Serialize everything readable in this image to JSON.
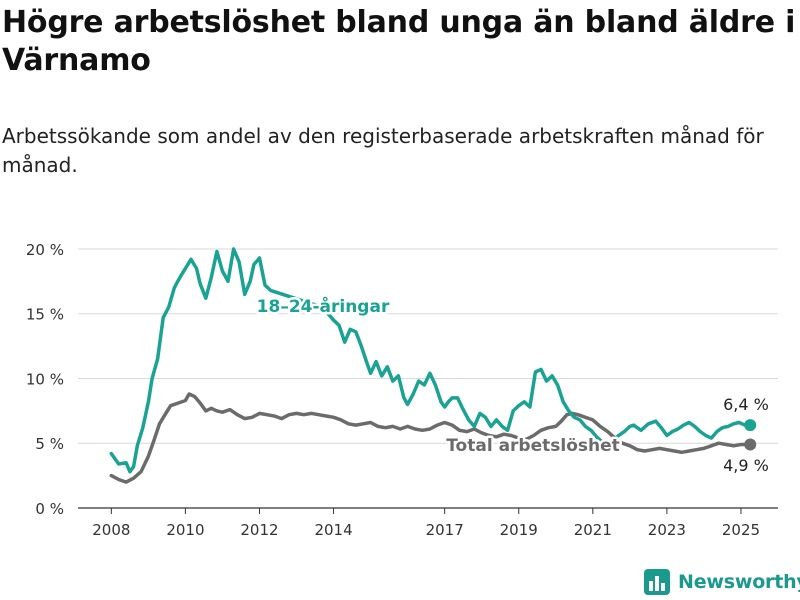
{
  "title": "Högre arbetslöshet bland unga än bland äldre i Värnamo",
  "subtitle": "Arbetssökande som andel av den registerbaserade arbetskraften månad för månad.",
  "brand": {
    "name": "Newsworthy",
    "color": "#1a9a8c"
  },
  "chart_data": {
    "type": "line",
    "x_ticks": [
      {
        "label": "2008",
        "x": 2008.0
      },
      {
        "label": "2010",
        "x": 2010.0
      },
      {
        "label": "2012",
        "x": 2012.0
      },
      {
        "label": "2014",
        "x": 2014.0
      },
      {
        "label": "2017",
        "x": 2017.0
      },
      {
        "label": "2019",
        "x": 2019.0
      },
      {
        "label": "2021",
        "x": 2021.0
      },
      {
        "label": "2023",
        "x": 2023.0
      },
      {
        "label": "2025",
        "x": 2025.0
      }
    ],
    "y_ticks": [
      {
        "label": "0 %",
        "y": 0
      },
      {
        "label": "5 %",
        "y": 5
      },
      {
        "label": "10 %",
        "y": 10
      },
      {
        "label": "15 %",
        "y": 15
      },
      {
        "label": "20 %",
        "y": 20
      }
    ],
    "xlim": [
      2007.1,
      2026.0
    ],
    "ylim": [
      0,
      21
    ],
    "grid": "horizontal",
    "series": [
      {
        "name": "18–24-åringar",
        "color": "#1aa393",
        "end_label": "6,4 %",
        "x": [
          2008.0,
          2008.2,
          2008.4,
          2008.5,
          2008.6,
          2008.7,
          2008.85,
          2009.0,
          2009.1,
          2009.25,
          2009.4,
          2009.55,
          2009.7,
          2009.85,
          2010.0,
          2010.15,
          2010.3,
          2010.4,
          2010.55,
          2010.7,
          2010.85,
          2011.0,
          2011.15,
          2011.3,
          2011.45,
          2011.6,
          2011.75,
          2011.85,
          2012.0,
          2012.15,
          2012.3,
          2013.7,
          2013.85,
          2014.0,
          2014.15,
          2014.3,
          2014.45,
          2014.6,
          2014.75,
          2014.9,
          2015.0,
          2015.15,
          2015.3,
          2015.45,
          2015.6,
          2015.75,
          2015.9,
          2016.0,
          2016.15,
          2016.3,
          2016.45,
          2016.6,
          2016.75,
          2016.9,
          2017.0,
          2017.1,
          2017.2,
          2017.35,
          2017.5,
          2017.65,
          2017.8,
          2017.95,
          2018.1,
          2018.25,
          2018.4,
          2018.55,
          2018.7,
          2018.85,
          2019.0,
          2019.15,
          2019.3,
          2019.45,
          2019.6,
          2019.75,
          2019.9,
          2020.05,
          2020.2,
          2020.35,
          2020.5,
          2020.65,
          2020.8,
          2020.95,
          2021.1,
          2021.25,
          2021.4,
          2021.55,
          2021.7,
          2021.85,
          2022.0,
          2022.1,
          2022.3,
          2022.5,
          2022.7,
          2022.85,
          2023.0,
          2023.15,
          2023.3,
          2023.45,
          2023.6,
          2023.75,
          2023.9,
          2024.05,
          2024.2,
          2024.35,
          2024.5,
          2024.65,
          2024.8,
          2024.95,
          2025.1,
          2025.25
        ],
        "y": [
          4.2,
          3.4,
          3.5,
          2.8,
          3.2,
          4.8,
          6.2,
          8.2,
          10.0,
          11.5,
          14.7,
          15.5,
          17.0,
          17.8,
          18.5,
          19.2,
          18.5,
          17.3,
          16.2,
          17.8,
          19.8,
          18.3,
          17.5,
          20.0,
          19.0,
          16.5,
          17.5,
          18.8,
          19.3,
          17.2,
          16.8,
          15.5,
          15.0,
          14.5,
          14.1,
          12.8,
          13.8,
          13.6,
          12.5,
          11.2,
          10.4,
          11.3,
          10.2,
          10.9,
          9.8,
          10.2,
          8.5,
          8.0,
          8.8,
          9.8,
          9.5,
          10.4,
          9.5,
          8.2,
          7.8,
          8.2,
          8.5,
          8.5,
          7.6,
          6.8,
          6.3,
          7.3,
          7.0,
          6.3,
          6.8,
          6.3,
          6.0,
          7.5,
          7.9,
          8.2,
          7.8,
          10.5,
          10.7,
          9.8,
          10.2,
          9.5,
          8.2,
          7.5,
          7.0,
          6.8,
          6.3,
          6.0,
          5.5,
          5.1,
          4.9,
          5.3,
          5.6,
          5.9,
          6.3,
          6.4,
          6.0,
          6.5,
          6.7,
          6.2,
          5.6,
          5.9,
          6.1,
          6.4,
          6.6,
          6.3,
          5.9,
          5.6,
          5.4,
          5.9,
          6.2,
          6.3,
          6.5,
          6.6,
          6.4,
          6.4
        ]
      },
      {
        "name": "Total arbetslöshet",
        "color": "#6b6b6b",
        "end_label": "4,9 %",
        "x": [
          2008.0,
          2008.2,
          2008.4,
          2008.6,
          2008.8,
          2009.0,
          2009.15,
          2009.3,
          2009.45,
          2009.6,
          2009.8,
          2010.0,
          2010.1,
          2010.25,
          2010.4,
          2010.55,
          2010.7,
          2010.85,
          2011.0,
          2011.2,
          2011.4,
          2011.6,
          2011.8,
          2012.0,
          2012.2,
          2012.4,
          2012.6,
          2012.8,
          2013.0,
          2013.2,
          2013.4,
          2013.6,
          2013.8,
          2014.0,
          2014.2,
          2014.4,
          2014.6,
          2014.8,
          2015.0,
          2015.2,
          2015.4,
          2015.6,
          2015.8,
          2016.0,
          2016.2,
          2016.4,
          2016.6,
          2016.8,
          2017.0,
          2017.2,
          2017.4,
          2017.6,
          2017.8,
          2018.0,
          2018.2,
          2018.4,
          2018.6,
          2018.8,
          2019.0,
          2019.2,
          2019.4,
          2019.6,
          2019.8,
          2020.0,
          2020.15,
          2020.3,
          2020.45,
          2020.6,
          2020.8,
          2021.0,
          2021.2,
          2021.4,
          2021.6,
          2021.8,
          2022.0,
          2022.2,
          2022.4,
          2022.6,
          2022.8,
          2023.0,
          2023.2,
          2023.4,
          2023.6,
          2023.8,
          2024.0,
          2024.2,
          2024.4,
          2024.6,
          2024.8,
          2025.0,
          2025.25
        ],
        "y": [
          2.5,
          2.2,
          2.0,
          2.3,
          2.8,
          4.0,
          5.2,
          6.5,
          7.2,
          7.9,
          8.1,
          8.3,
          8.8,
          8.6,
          8.1,
          7.5,
          7.7,
          7.5,
          7.4,
          7.6,
          7.2,
          6.9,
          7.0,
          7.3,
          7.2,
          7.1,
          6.9,
          7.2,
          7.3,
          7.2,
          7.3,
          7.2,
          7.1,
          7.0,
          6.8,
          6.5,
          6.4,
          6.5,
          6.6,
          6.3,
          6.2,
          6.3,
          6.1,
          6.3,
          6.1,
          6.0,
          6.1,
          6.4,
          6.6,
          6.4,
          6.0,
          5.9,
          6.1,
          5.8,
          5.6,
          5.5,
          5.7,
          5.6,
          5.4,
          5.3,
          5.6,
          6.0,
          6.2,
          6.3,
          6.7,
          7.2,
          7.3,
          7.2,
          7.0,
          6.8,
          6.3,
          5.9,
          5.4,
          5.0,
          4.8,
          4.5,
          4.4,
          4.5,
          4.6,
          4.5,
          4.4,
          4.3,
          4.4,
          4.5,
          4.6,
          4.8,
          5.0,
          4.9,
          4.8,
          4.9,
          4.9
        ]
      }
    ],
    "annotations": [
      {
        "text": "18–24-åringar",
        "series": 0
      },
      {
        "text": "Total arbetslöshet",
        "series": 1
      }
    ]
  }
}
